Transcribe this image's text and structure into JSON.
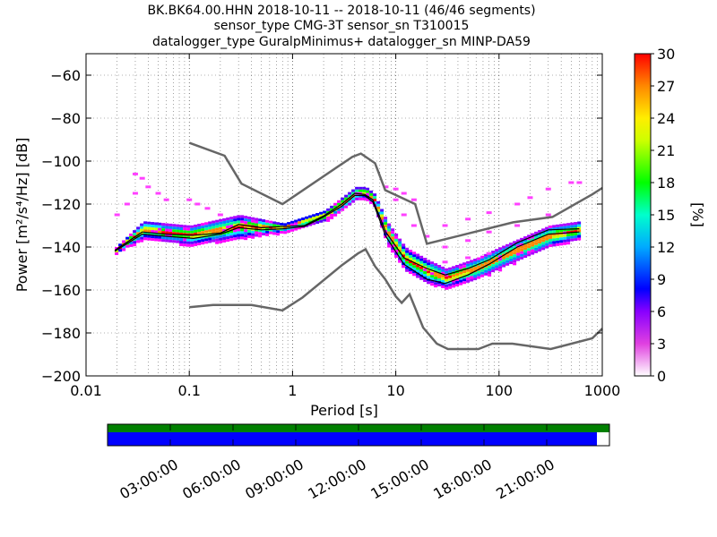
{
  "title_lines": [
    "BK.BK64.00.HHN   2018-10-11 -- 2018-10-11  (46/46 segments)",
    "sensor_type CMG-3T sensor_sn T310015",
    "datalogger_type GuralpMinimus+ datalogger_sn MINP-DA59"
  ],
  "chart_data": {
    "type": "heatmap",
    "xlabel": "Period [s]",
    "ylabel": "Power [m²/s⁴/Hz] [dB]",
    "xscale": "log",
    "xlim": [
      0.01,
      1000
    ],
    "ylim": [
      -200,
      -50
    ],
    "xtick_labels": [
      "0.01",
      "0.1",
      "1",
      "10",
      "100",
      "1000"
    ],
    "xtick_values": [
      0.01,
      0.1,
      1,
      10,
      100,
      1000
    ],
    "ytick_labels": [
      "−60",
      "−80",
      "−100",
      "−120",
      "−140",
      "−160",
      "−180",
      "−200"
    ],
    "ytick_values": [
      -60,
      -80,
      -100,
      -120,
      -140,
      -160,
      -180,
      -200
    ],
    "grid": true,
    "colorbar": {
      "label": "[%]",
      "range": [
        0,
        30
      ],
      "tick_labels": [
        "0",
        "3",
        "6",
        "9",
        "12",
        "15",
        "18",
        "21",
        "24",
        "27",
        "30"
      ],
      "tick_values": [
        0,
        3,
        6,
        9,
        12,
        15,
        18,
        21,
        24,
        27,
        30
      ]
    },
    "series": [
      {
        "name": "",
        "role": "noise model high",
        "color": "#666666",
        "points": [
          [
            0.1,
            -91.5
          ],
          [
            0.22,
            -97.5
          ],
          [
            0.32,
            -110.5
          ],
          [
            0.8,
            -120
          ],
          [
            3.8,
            -98
          ],
          [
            4.6,
            -96.5
          ],
          [
            6.3,
            -101
          ],
          [
            7.9,
            -113.5
          ],
          [
            15.4,
            -120
          ],
          [
            20,
            -138.5
          ],
          [
            137,
            -128.5
          ],
          [
            329,
            -126
          ],
          [
            800,
            -115.5
          ],
          [
            1000,
            -112.5
          ]
        ]
      },
      {
        "name": "",
        "role": "noise model low",
        "color": "#666666",
        "points": [
          [
            0.1,
            -168
          ],
          [
            0.17,
            -167
          ],
          [
            0.4,
            -167
          ],
          [
            0.8,
            -169.5
          ],
          [
            1.25,
            -163.5
          ],
          [
            3,
            -148.5
          ],
          [
            4.3,
            -143
          ],
          [
            5.1,
            -141
          ],
          [
            6.3,
            -149
          ],
          [
            7.9,
            -155
          ],
          [
            10,
            -163
          ],
          [
            11.4,
            -166
          ],
          [
            13.6,
            -162
          ],
          [
            18.4,
            -177.5
          ],
          [
            25,
            -185
          ],
          [
            32,
            -187.5
          ],
          [
            63,
            -187.5
          ],
          [
            86,
            -185
          ],
          [
            135,
            -185
          ],
          [
            316,
            -187.5
          ],
          [
            800,
            -182.5
          ],
          [
            1000,
            -178
          ]
        ]
      },
      {
        "name": "",
        "role": "mean PSD",
        "color": "#000000",
        "points": [
          [
            0.019,
            -141.5
          ],
          [
            0.035,
            -133
          ],
          [
            0.06,
            -134
          ],
          [
            0.11,
            -134.5
          ],
          [
            0.2,
            -133.5
          ],
          [
            0.3,
            -129.5
          ],
          [
            0.5,
            -131
          ],
          [
            0.8,
            -130.5
          ],
          [
            1.3,
            -130
          ],
          [
            2,
            -125.5
          ],
          [
            3,
            -120
          ],
          [
            4,
            -115
          ],
          [
            5,
            -115.5
          ],
          [
            6,
            -118
          ],
          [
            8,
            -133
          ],
          [
            12,
            -145
          ],
          [
            20,
            -150
          ],
          [
            30,
            -153
          ],
          [
            50,
            -150
          ],
          [
            80,
            -146
          ],
          [
            150,
            -138
          ],
          [
            300,
            -132
          ],
          [
            600,
            -131.5
          ]
        ]
      },
      {
        "name": "",
        "role": "mode PSD",
        "color": "#000000",
        "points": [
          [
            0.019,
            -142
          ],
          [
            0.035,
            -134
          ],
          [
            0.06,
            -135
          ],
          [
            0.11,
            -136
          ],
          [
            0.2,
            -134
          ],
          [
            0.3,
            -131
          ],
          [
            0.5,
            -132
          ],
          [
            0.8,
            -131.5
          ],
          [
            1.3,
            -130.5
          ],
          [
            2,
            -126
          ],
          [
            3,
            -121
          ],
          [
            4,
            -116
          ],
          [
            5,
            -116
          ],
          [
            6,
            -119
          ],
          [
            8,
            -135
          ],
          [
            12,
            -148
          ],
          [
            20,
            -155
          ],
          [
            30,
            -157
          ],
          [
            50,
            -153
          ],
          [
            80,
            -148
          ],
          [
            150,
            -140
          ],
          [
            300,
            -134
          ],
          [
            600,
            -133
          ]
        ]
      }
    ],
    "density_bands": [
      {
        "upper": [
          [
            0.019,
            -140
          ],
          [
            0.035,
            -128
          ],
          [
            0.1,
            -130
          ],
          [
            0.3,
            -125
          ],
          [
            0.8,
            -129
          ],
          [
            2,
            -123
          ],
          [
            4,
            -112
          ],
          [
            5,
            -112
          ],
          [
            6,
            -115
          ],
          [
            8,
            -128
          ],
          [
            12,
            -140
          ],
          [
            20,
            -146
          ],
          [
            30,
            -150
          ],
          [
            60,
            -145
          ],
          [
            100,
            -140
          ],
          [
            300,
            -130
          ],
          [
            600,
            -128
          ]
        ],
        "lower": [
          [
            0.019,
            -143
          ],
          [
            0.035,
            -136
          ],
          [
            0.1,
            -139
          ],
          [
            0.3,
            -136
          ],
          [
            0.8,
            -133
          ],
          [
            2,
            -128
          ],
          [
            4,
            -118
          ],
          [
            5,
            -117
          ],
          [
            6,
            -121
          ],
          [
            8,
            -138
          ],
          [
            12,
            -151
          ],
          [
            20,
            -157
          ],
          [
            30,
            -159
          ],
          [
            60,
            -155
          ],
          [
            100,
            -150
          ],
          [
            300,
            -140
          ],
          [
            600,
            -136
          ]
        ]
      }
    ],
    "scatter_outliers": [
      [
        0.03,
        -106
      ],
      [
        0.035,
        -108
      ],
      [
        0.04,
        -112
      ],
      [
        0.05,
        -115
      ],
      [
        0.06,
        -118
      ],
      [
        0.03,
        -115
      ],
      [
        0.025,
        -120
      ],
      [
        0.02,
        -125
      ],
      [
        0.15,
        -122
      ],
      [
        0.2,
        -125
      ],
      [
        0.1,
        -118
      ],
      [
        0.12,
        -120
      ],
      [
        8,
        -112
      ],
      [
        10,
        -113
      ],
      [
        12,
        -115
      ],
      [
        15,
        -118
      ],
      [
        10,
        -118
      ],
      [
        12,
        -125
      ],
      [
        15,
        -130
      ],
      [
        20,
        -135
      ],
      [
        30,
        -130
      ],
      [
        50,
        -127
      ],
      [
        80,
        -124
      ],
      [
        150,
        -120
      ],
      [
        200,
        -117
      ],
      [
        300,
        -113
      ],
      [
        500,
        -110
      ],
      [
        600,
        -110
      ],
      [
        30,
        -140
      ],
      [
        50,
        -137
      ],
      [
        80,
        -133
      ],
      [
        150,
        -130
      ],
      [
        300,
        -125
      ],
      [
        30,
        -147
      ],
      [
        50,
        -145
      ],
      [
        80,
        -143
      ]
    ],
    "time_axis": {
      "tick_labels": [
        "03:00:00",
        "06:00:00",
        "09:00:00",
        "12:00:00",
        "15:00:00",
        "18:00:00",
        "21:00:00"
      ],
      "tick_hours": [
        3,
        6,
        9,
        12,
        15,
        18,
        21
      ],
      "range_hours": [
        0,
        24
      ],
      "segments_hours": [
        0,
        23.4
      ],
      "bar_colors": {
        "top": "#008000",
        "bottom": "#0000ff"
      }
    }
  }
}
